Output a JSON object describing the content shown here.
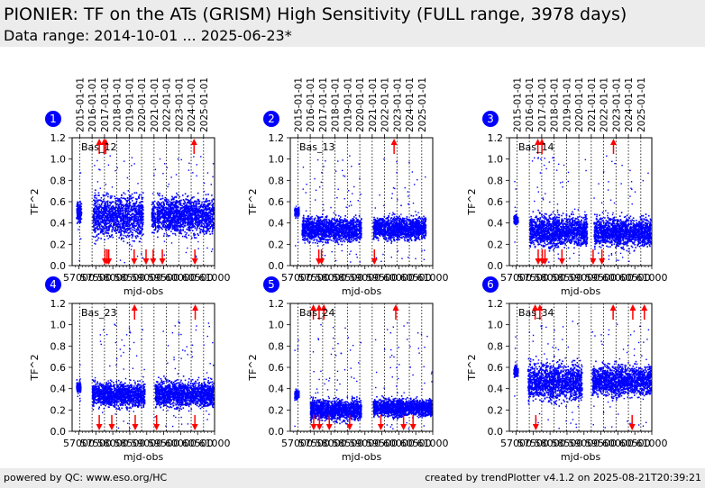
{
  "header": {
    "title": "PIONIER: TF on the ATs (GRISM) High Sensitivity (FULL range, 3978 days)",
    "subtitle": "Data range: 2014-10-01 ... 2025-06-23*"
  },
  "footer": {
    "left": "powered by QC: www.eso.org/HC",
    "right": "created by trendPlotter v4.1.2 on 2025-08-21T20:39:21"
  },
  "colors": {
    "data": "#0000ff",
    "outlier": "#ff0000",
    "badge": "#0000ff",
    "background": "#ffffff"
  },
  "top_axis": {
    "labels": [
      "2015-01-01",
      "2016-01-01",
      "2017-01-01",
      "2018-01-01",
      "2019-01-01",
      "2020-01-01",
      "2021-01-01",
      "2022-01-01",
      "2023-01-01",
      "2024-01-01",
      "2025-01-01"
    ],
    "mjd": [
      57023,
      57388,
      57754,
      58119,
      58484,
      58849,
      59215,
      59580,
      59945,
      60310,
      60676
    ]
  },
  "chart_data": [
    {
      "type": "scatter",
      "panel": "1",
      "label": "Bas_12",
      "xlabel": "mjd-obs",
      "ylabel": "TF^2",
      "xlim": [
        56800,
        61000
      ],
      "ylim": [
        0,
        1.2
      ],
      "yticks": [
        0.0,
        0.2,
        0.4,
        0.6,
        0.8,
        1.0,
        1.2
      ],
      "xtick_labels": [
        "57000",
        "57500",
        "58000",
        "58500",
        "59000",
        "59500",
        "60000",
        "60500",
        "61000"
      ],
      "grid": "vertical dotted at year boundaries",
      "segments": [
        {
          "x": [
            56935,
            57080
          ],
          "y": [
            0.38,
            0.62
          ]
        },
        {
          "x": [
            57420,
            58900
          ],
          "y": [
            0.22,
            0.7
          ]
        },
        {
          "x": [
            59150,
            59270
          ],
          "y": [
            0.28,
            0.62
          ]
        },
        {
          "x": [
            59300,
            60980
          ],
          "y": [
            0.26,
            0.68
          ]
        }
      ],
      "outliers_high": [
        57600,
        57740,
        57790,
        60395
      ],
      "outliers_low": [
        57770,
        57830,
        57880,
        58630,
        58980,
        59190,
        59460,
        60420
      ]
    },
    {
      "type": "scatter",
      "panel": "2",
      "label": "Bas_13",
      "xlabel": "mjd-obs",
      "ylabel": "TF^2",
      "xlim": [
        56800,
        61000
      ],
      "ylim": [
        0,
        1.2
      ],
      "yticks": [
        0.0,
        0.2,
        0.4,
        0.6,
        0.8,
        1.0,
        1.2
      ],
      "xtick_labels": [
        "57000",
        "57500",
        "58000",
        "58500",
        "59000",
        "59500",
        "60000",
        "60500",
        "61000"
      ],
      "grid": "vertical dotted at year boundaries",
      "segments": [
        {
          "x": [
            56935,
            57060
          ],
          "y": [
            0.45,
            0.55
          ]
        },
        {
          "x": [
            57150,
            58900
          ],
          "y": [
            0.2,
            0.48
          ]
        },
        {
          "x": [
            59250,
            60800
          ],
          "y": [
            0.22,
            0.48
          ]
        }
      ],
      "outliers_high": [
        59860
      ],
      "outliers_low": [
        57640,
        57720,
        59280
      ]
    },
    {
      "type": "scatter",
      "panel": "3",
      "label": "Bas_14",
      "xlabel": "mjd-obs",
      "ylabel": "TF^2",
      "xlim": [
        56800,
        61000
      ],
      "ylim": [
        0,
        1.2
      ],
      "yticks": [
        0.0,
        0.2,
        0.4,
        0.6,
        0.8,
        1.0,
        1.2
      ],
      "xtick_labels": [
        "57000",
        "57500",
        "58000",
        "58500",
        "59000",
        "59500",
        "60000",
        "60500",
        "61000"
      ],
      "grid": "vertical dotted at year boundaries",
      "segments": [
        {
          "x": [
            56935,
            57060
          ],
          "y": [
            0.38,
            0.48
          ]
        },
        {
          "x": [
            57400,
            59100
          ],
          "y": [
            0.15,
            0.5
          ]
        },
        {
          "x": [
            59300,
            60980
          ],
          "y": [
            0.15,
            0.48
          ]
        }
      ],
      "outliers_high": [
        57640,
        57760,
        59870
      ],
      "outliers_low": [
        57650,
        57770,
        57850,
        58350,
        59270,
        59530
      ]
    },
    {
      "type": "scatter",
      "panel": "4",
      "label": "Bas_23",
      "xlabel": "mjd-obs",
      "ylabel": "TF^2",
      "xlim": [
        56800,
        61000
      ],
      "ylim": [
        0,
        1.2
      ],
      "yticks": [
        0.0,
        0.2,
        0.4,
        0.6,
        0.8,
        1.0,
        1.2
      ],
      "xtick_labels": [
        "57000",
        "57500",
        "58000",
        "58500",
        "59000",
        "59500",
        "60000",
        "60500",
        "61000"
      ],
      "grid": "vertical dotted at year boundaries",
      "segments": [
        {
          "x": [
            56935,
            57060
          ],
          "y": [
            0.35,
            0.48
          ]
        },
        {
          "x": [
            57400,
            58950
          ],
          "y": [
            0.2,
            0.48
          ]
        },
        {
          "x": [
            59250,
            60980
          ],
          "y": [
            0.2,
            0.5
          ]
        }
      ],
      "outliers_high": [
        58640,
        60430
      ],
      "outliers_low": [
        57600,
        57970,
        58660,
        59290,
        60420
      ]
    },
    {
      "type": "scatter",
      "panel": "5",
      "label": "Bas_24",
      "xlabel": "mjd-obs",
      "ylabel": "TF^2",
      "xlim": [
        56800,
        61000
      ],
      "ylim": [
        0,
        1.2
      ],
      "yticks": [
        0.0,
        0.2,
        0.4,
        0.6,
        0.8,
        1.0,
        1.2
      ],
      "xtick_labels": [
        "57000",
        "57500",
        "58000",
        "58500",
        "59000",
        "59500",
        "60000",
        "60500",
        "61000"
      ],
      "grid": "vertical dotted at year boundaries",
      "segments": [
        {
          "x": [
            56935,
            57060
          ],
          "y": [
            0.28,
            0.4
          ]
        },
        {
          "x": [
            57400,
            58900
          ],
          "y": [
            0.08,
            0.32
          ]
        },
        {
          "x": [
            59250,
            60980
          ],
          "y": [
            0.12,
            0.32
          ]
        }
      ],
      "outliers_high": [
        57480,
        57650,
        57790,
        59910
      ],
      "outliers_low": [
        57490,
        57660,
        57950,
        58550,
        59470,
        60140,
        60420
      ]
    },
    {
      "type": "scatter",
      "panel": "6",
      "label": "Bas_34",
      "xlabel": "mjd-obs",
      "ylabel": "TF^2",
      "xlim": [
        56800,
        61000
      ],
      "ylim": [
        0,
        1.2
      ],
      "yticks": [
        0.0,
        0.2,
        0.4,
        0.6,
        0.8,
        1.0,
        1.2
      ],
      "xtick_labels": [
        "57000",
        "57500",
        "58000",
        "58500",
        "59000",
        "59500",
        "60000",
        "60500",
        "61000"
      ],
      "grid": "vertical dotted at year boundaries",
      "segments": [
        {
          "x": [
            56935,
            57060
          ],
          "y": [
            0.5,
            0.62
          ]
        },
        {
          "x": [
            57350,
            58950
          ],
          "y": [
            0.25,
            0.68
          ]
        },
        {
          "x": [
            59250,
            60980
          ],
          "y": [
            0.3,
            0.65
          ]
        }
      ],
      "outliers_high": [
        57560,
        57700,
        59860,
        60440,
        60780
      ],
      "outliers_low": [
        57580,
        60420
      ]
    }
  ]
}
